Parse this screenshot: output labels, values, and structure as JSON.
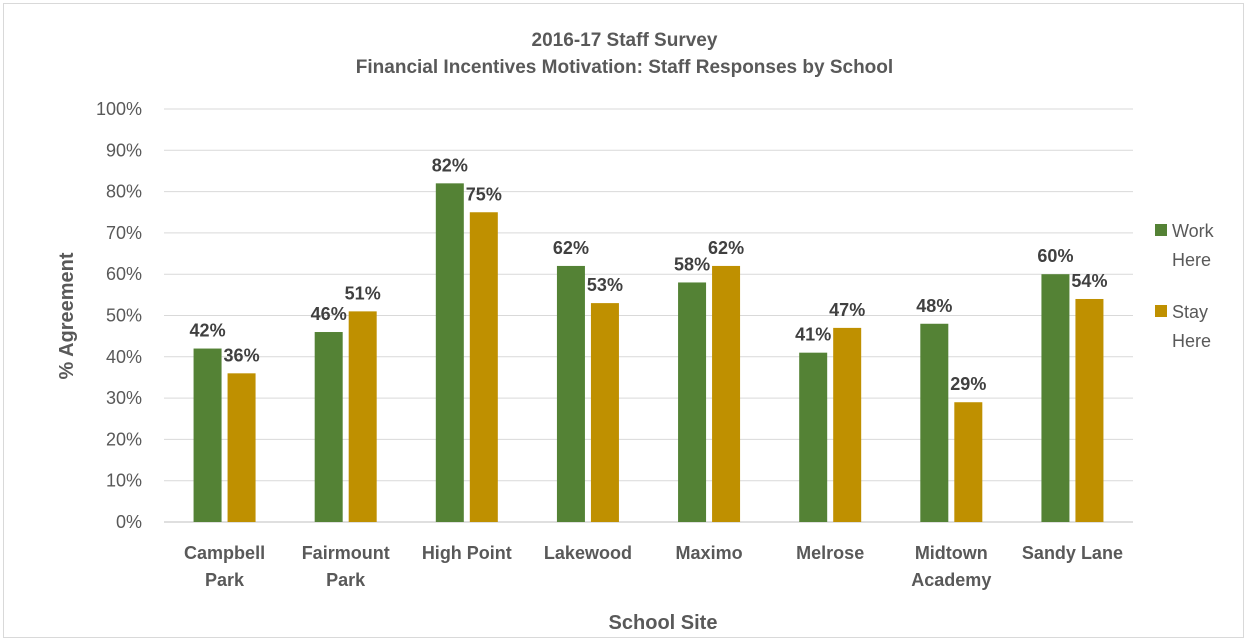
{
  "chart_data": {
    "type": "bar",
    "title_line1": "2016-17 Staff Survey",
    "title_line2": "Financial Incentives Motivation: Staff Responses by School",
    "xlabel": "School Site",
    "ylabel": "% Agreement",
    "ylim": [
      0,
      100
    ],
    "y_ticks": [
      "0%",
      "10%",
      "20%",
      "30%",
      "40%",
      "50%",
      "60%",
      "70%",
      "80%",
      "90%",
      "100%"
    ],
    "grid": true,
    "legend_position": "right",
    "categories": [
      [
        "Campbell",
        "Park"
      ],
      [
        "Fairmount",
        "Park"
      ],
      [
        "High Point"
      ],
      [
        "Lakewood"
      ],
      [
        "Maximo"
      ],
      [
        "Melrose"
      ],
      [
        "Midtown",
        "Academy"
      ],
      [
        "Sandy Lane"
      ]
    ],
    "series": [
      {
        "name": [
          "Work",
          "Here"
        ],
        "color": "#548235",
        "values": [
          42,
          46,
          82,
          62,
          58,
          41,
          48,
          60
        ],
        "labels": [
          "42%",
          "46%",
          "82%",
          "62%",
          "58%",
          "41%",
          "48%",
          "60%"
        ]
      },
      {
        "name": [
          "Stay",
          "Here"
        ],
        "color": "#bf9000",
        "values": [
          36,
          51,
          75,
          53,
          62,
          47,
          29,
          54
        ],
        "labels": [
          "36%",
          "51%",
          "75%",
          "53%",
          "62%",
          "47%",
          "29%",
          "54%"
        ]
      }
    ]
  }
}
